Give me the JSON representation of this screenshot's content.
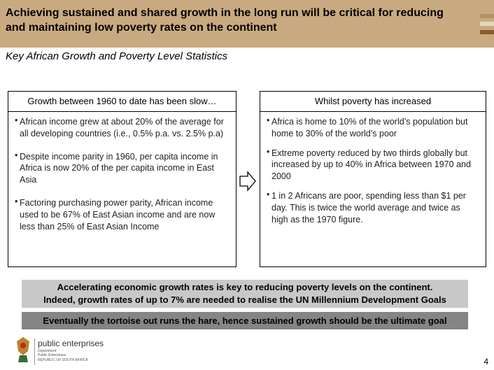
{
  "header": {
    "title": "Achieving sustained and shared growth in the long run will be critical for reducing and maintaining low poverty rates on the continent"
  },
  "subtitle": "Key African Growth and Poverty Level Statistics",
  "left_panel": {
    "heading": "Growth between 1960 to date has been slow…",
    "bullets": [
      "African income grew at about 20% of the average for all developing countries (i.e., 0.5% p.a. vs. 2.5% p.a)",
      "Despite income parity in 1960, per capita income in Africa is now 20% of the per capita income in East Asia",
      "Factoring purchasing power parity, African income used to be 67% of East Asian income and are now less than 25% of East Asian Income"
    ]
  },
  "right_panel": {
    "heading": "Whilst poverty has increased",
    "bullets": [
      "Africa is home to 10% of the world’s population but home to 30% of the world’s poor",
      "Extreme poverty  reduced by two thirds globally but increased by up to 40% in Africa between 1970 and 2000",
      "1 in 2 Africans are poor, spending less than $1 per day. This is twice the world average and twice as high as the 1970 figure."
    ]
  },
  "callouts": [
    "Accelerating economic growth rates is key to reducing poverty levels on the continent.",
    "Indeed, growth rates of up to 7% are needed to realise the UN Millennium Development Goals"
  ],
  "conclusion": "Eventually the tortoise out runs the hare, hence sustained growth should be the ultimate goal",
  "logo": {
    "name": "public enterprises",
    "department": "Department:",
    "unit": "Public Enterprises",
    "country": "REPUBLIC OF SOUTH AFRICA"
  },
  "page_number": "4"
}
